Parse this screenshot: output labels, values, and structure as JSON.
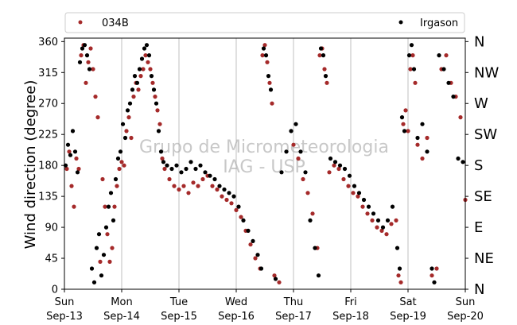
{
  "chart_data": {
    "type": "scatter",
    "title": "",
    "ylabel": "Wind direction (degree)",
    "ylim": [
      0,
      365
    ],
    "yticks": [
      0,
      45,
      90,
      135,
      180,
      225,
      270,
      315,
      360
    ],
    "compass_labels": [
      {
        "value": 0,
        "label": "N"
      },
      {
        "value": 45,
        "label": "NE"
      },
      {
        "value": 90,
        "label": "E"
      },
      {
        "value": 135,
        "label": "SE"
      },
      {
        "value": 180,
        "label": "S"
      },
      {
        "value": 225,
        "label": "SW"
      },
      {
        "value": 270,
        "label": "W"
      },
      {
        "value": 315,
        "label": "NW"
      },
      {
        "value": 360,
        "label": "N"
      }
    ],
    "xlim": [
      "2020-09-13",
      "2020-09-20"
    ],
    "xticks": [
      {
        "date": "2020-09-13",
        "day": "Sun",
        "label": "Sep-13"
      },
      {
        "date": "2020-09-14",
        "day": "Mon",
        "label": "Sep-14"
      },
      {
        "date": "2020-09-15",
        "day": "Tue",
        "label": "Sep-15"
      },
      {
        "date": "2020-09-16",
        "day": "Wed",
        "label": "Sep-16"
      },
      {
        "date": "2020-09-17",
        "day": "Thu",
        "label": "Sep-17"
      },
      {
        "date": "2020-09-18",
        "day": "Fri",
        "label": "Sep-18"
      },
      {
        "date": "2020-09-19",
        "day": "Sat",
        "label": "Sep-19"
      },
      {
        "date": "2020-09-20",
        "day": "Sun",
        "label": "Sep-20"
      }
    ],
    "grid": "vertical",
    "legend_position": "top",
    "watermark_lines": [
      "Grupo de Micrometeorologia",
      "IAG - USP"
    ],
    "series": [
      {
        "name": "034B",
        "color": "#a52a2a",
        "points": [
          [
            "2020-09-13 01:00",
            175
          ],
          [
            "2020-09-13 02:00",
            200
          ],
          [
            "2020-09-13 03:00",
            150
          ],
          [
            "2020-09-13 04:00",
            120
          ],
          [
            "2020-09-13 05:00",
            190
          ],
          [
            "2020-09-13 06:00",
            175
          ],
          [
            "2020-09-13 07:00",
            340
          ],
          [
            "2020-09-13 08:00",
            355
          ],
          [
            "2020-09-13 09:00",
            300
          ],
          [
            "2020-09-13 10:00",
            330
          ],
          [
            "2020-09-13 11:00",
            350
          ],
          [
            "2020-09-13 12:00",
            320
          ],
          [
            "2020-09-13 13:00",
            280
          ],
          [
            "2020-09-13 14:00",
            250
          ],
          [
            "2020-09-13 15:00",
            40
          ],
          [
            "2020-09-13 16:00",
            160
          ],
          [
            "2020-09-13 17:00",
            120
          ],
          [
            "2020-09-13 18:00",
            80
          ],
          [
            "2020-09-13 19:00",
            40
          ],
          [
            "2020-09-13 20:00",
            60
          ],
          [
            "2020-09-13 21:00",
            120
          ],
          [
            "2020-09-13 22:00",
            150
          ],
          [
            "2020-09-13 23:00",
            175
          ],
          [
            "2020-09-14 00:00",
            185
          ],
          [
            "2020-09-14 01:00",
            180
          ],
          [
            "2020-09-14 02:00",
            230
          ],
          [
            "2020-09-14 03:00",
            250
          ],
          [
            "2020-09-14 04:00",
            220
          ],
          [
            "2020-09-14 05:00",
            280
          ],
          [
            "2020-09-14 06:00",
            300
          ],
          [
            "2020-09-14 07:00",
            290
          ],
          [
            "2020-09-14 08:00",
            310
          ],
          [
            "2020-09-14 09:00",
            320
          ],
          [
            "2020-09-14 10:00",
            340
          ],
          [
            "2020-09-14 11:00",
            330
          ],
          [
            "2020-09-14 12:00",
            320
          ],
          [
            "2020-09-14 13:00",
            300
          ],
          [
            "2020-09-14 14:00",
            280
          ],
          [
            "2020-09-14 15:00",
            260
          ],
          [
            "2020-09-14 16:00",
            240
          ],
          [
            "2020-09-14 17:00",
            190
          ],
          [
            "2020-09-14 18:00",
            175
          ],
          [
            "2020-09-14 20:00",
            160
          ],
          [
            "2020-09-14 22:00",
            150
          ],
          [
            "2020-09-15 00:00",
            145
          ],
          [
            "2020-09-15 02:00",
            150
          ],
          [
            "2020-09-15 04:00",
            140
          ],
          [
            "2020-09-15 06:00",
            155
          ],
          [
            "2020-09-15 08:00",
            150
          ],
          [
            "2020-09-15 10:00",
            160
          ],
          [
            "2020-09-15 12:00",
            165
          ],
          [
            "2020-09-15 14:00",
            150
          ],
          [
            "2020-09-15 16:00",
            145
          ],
          [
            "2020-09-15 18:00",
            135
          ],
          [
            "2020-09-15 20:00",
            130
          ],
          [
            "2020-09-15 22:00",
            125
          ],
          [
            "2020-09-16 00:00",
            115
          ],
          [
            "2020-09-16 02:00",
            105
          ],
          [
            "2020-09-16 04:00",
            85
          ],
          [
            "2020-09-16 06:00",
            65
          ],
          [
            "2020-09-16 08:00",
            45
          ],
          [
            "2020-09-16 10:00",
            30
          ],
          [
            "2020-09-16 11:00",
            340
          ],
          [
            "2020-09-16 12:00",
            355
          ],
          [
            "2020-09-16 13:00",
            330
          ],
          [
            "2020-09-16 14:00",
            300
          ],
          [
            "2020-09-16 15:00",
            270
          ],
          [
            "2020-09-16 16:00",
            20
          ],
          [
            "2020-09-16 18:00",
            10
          ],
          [
            "2020-09-17 00:00",
            210
          ],
          [
            "2020-09-17 02:00",
            190
          ],
          [
            "2020-09-17 04:00",
            160
          ],
          [
            "2020-09-17 06:00",
            140
          ],
          [
            "2020-09-17 08:00",
            110
          ],
          [
            "2020-09-17 10:00",
            60
          ],
          [
            "2020-09-17 11:00",
            340
          ],
          [
            "2020-09-17 12:00",
            350
          ],
          [
            "2020-09-17 13:00",
            320
          ],
          [
            "2020-09-17 14:00",
            300
          ],
          [
            "2020-09-17 15:00",
            170
          ],
          [
            "2020-09-17 17:00",
            180
          ],
          [
            "2020-09-17 19:00",
            175
          ],
          [
            "2020-09-17 21:00",
            160
          ],
          [
            "2020-09-17 23:00",
            150
          ],
          [
            "2020-09-18 01:00",
            140
          ],
          [
            "2020-09-18 03:00",
            135
          ],
          [
            "2020-09-18 05:00",
            120
          ],
          [
            "2020-09-18 07:00",
            110
          ],
          [
            "2020-09-18 09:00",
            100
          ],
          [
            "2020-09-18 11:00",
            90
          ],
          [
            "2020-09-18 13:00",
            85
          ],
          [
            "2020-09-18 15:00",
            80
          ],
          [
            "2020-09-18 17:00",
            95
          ],
          [
            "2020-09-18 19:00",
            100
          ],
          [
            "2020-09-18 20:00",
            20
          ],
          [
            "2020-09-18 21:00",
            10
          ],
          [
            "2020-09-18 22:00",
            240
          ],
          [
            "2020-09-18 23:00",
            260
          ],
          [
            "2020-09-19 00:00",
            230
          ],
          [
            "2020-09-19 01:00",
            320
          ],
          [
            "2020-09-19 02:00",
            340
          ],
          [
            "2020-09-19 03:00",
            300
          ],
          [
            "2020-09-19 04:00",
            210
          ],
          [
            "2020-09-19 06:00",
            190
          ],
          [
            "2020-09-19 08:00",
            220
          ],
          [
            "2020-09-19 10:00",
            20
          ],
          [
            "2020-09-19 12:00",
            30
          ],
          [
            "2020-09-19 14:00",
            320
          ],
          [
            "2020-09-19 16:00",
            340
          ],
          [
            "2020-09-19 18:00",
            300
          ],
          [
            "2020-09-19 20:00",
            280
          ],
          [
            "2020-09-19 22:00",
            250
          ],
          [
            "2020-09-20 00:00",
            130
          ]
        ]
      },
      {
        "name": "Irgason",
        "color": "#000000",
        "points": [
          [
            "2020-09-13 00:30",
            180
          ],
          [
            "2020-09-13 01:30",
            210
          ],
          [
            "2020-09-13 02:30",
            195
          ],
          [
            "2020-09-13 03:30",
            230
          ],
          [
            "2020-09-13 04:30",
            200
          ],
          [
            "2020-09-13 05:30",
            170
          ],
          [
            "2020-09-13 06:30",
            330
          ],
          [
            "2020-09-13 07:30",
            350
          ],
          [
            "2020-09-13 08:30",
            355
          ],
          [
            "2020-09-13 09:30",
            340
          ],
          [
            "2020-09-13 10:30",
            320
          ],
          [
            "2020-09-13 11:30",
            30
          ],
          [
            "2020-09-13 12:30",
            10
          ],
          [
            "2020-09-13 13:30",
            60
          ],
          [
            "2020-09-13 14:30",
            80
          ],
          [
            "2020-09-13 15:30",
            20
          ],
          [
            "2020-09-13 16:30",
            50
          ],
          [
            "2020-09-13 17:30",
            90
          ],
          [
            "2020-09-13 18:30",
            120
          ],
          [
            "2020-09-13 19:30",
            140
          ],
          [
            "2020-09-13 20:30",
            100
          ],
          [
            "2020-09-13 21:30",
            160
          ],
          [
            "2020-09-13 22:30",
            190
          ],
          [
            "2020-09-13 23:30",
            200
          ],
          [
            "2020-09-14 00:30",
            240
          ],
          [
            "2020-09-14 01:30",
            220
          ],
          [
            "2020-09-14 02:30",
            260
          ],
          [
            "2020-09-14 03:30",
            270
          ],
          [
            "2020-09-14 04:30",
            290
          ],
          [
            "2020-09-14 05:30",
            310
          ],
          [
            "2020-09-14 06:30",
            300
          ],
          [
            "2020-09-14 07:30",
            320
          ],
          [
            "2020-09-14 08:30",
            335
          ],
          [
            "2020-09-14 09:30",
            350
          ],
          [
            "2020-09-14 10:30",
            355
          ],
          [
            "2020-09-14 11:30",
            340
          ],
          [
            "2020-09-14 12:30",
            310
          ],
          [
            "2020-09-14 13:30",
            290
          ],
          [
            "2020-09-14 14:30",
            270
          ],
          [
            "2020-09-14 15:30",
            230
          ],
          [
            "2020-09-14 16:30",
            200
          ],
          [
            "2020-09-14 17:30",
            185
          ],
          [
            "2020-09-14 19:00",
            180
          ],
          [
            "2020-09-14 21:00",
            175
          ],
          [
            "2020-09-14 23:00",
            180
          ],
          [
            "2020-09-15 01:00",
            170
          ],
          [
            "2020-09-15 03:00",
            175
          ],
          [
            "2020-09-15 05:00",
            185
          ],
          [
            "2020-09-15 07:00",
            175
          ],
          [
            "2020-09-15 09:00",
            180
          ],
          [
            "2020-09-15 11:00",
            170
          ],
          [
            "2020-09-15 13:00",
            165
          ],
          [
            "2020-09-15 15:00",
            160
          ],
          [
            "2020-09-15 17:00",
            150
          ],
          [
            "2020-09-15 19:00",
            145
          ],
          [
            "2020-09-15 21:00",
            140
          ],
          [
            "2020-09-15 23:00",
            135
          ],
          [
            "2020-09-16 01:00",
            120
          ],
          [
            "2020-09-16 03:00",
            100
          ],
          [
            "2020-09-16 05:00",
            85
          ],
          [
            "2020-09-16 07:00",
            70
          ],
          [
            "2020-09-16 09:00",
            50
          ],
          [
            "2020-09-16 10:30",
            30
          ],
          [
            "2020-09-16 11:30",
            350
          ],
          [
            "2020-09-16 12:30",
            340
          ],
          [
            "2020-09-16 13:30",
            310
          ],
          [
            "2020-09-16 14:30",
            290
          ],
          [
            "2020-09-16 16:30",
            15
          ],
          [
            "2020-09-16 19:00",
            170
          ],
          [
            "2020-09-16 21:00",
            200
          ],
          [
            "2020-09-16 23:00",
            230
          ],
          [
            "2020-09-17 01:00",
            240
          ],
          [
            "2020-09-17 03:00",
            200
          ],
          [
            "2020-09-17 05:00",
            170
          ],
          [
            "2020-09-17 07:00",
            100
          ],
          [
            "2020-09-17 09:00",
            60
          ],
          [
            "2020-09-17 10:30",
            20
          ],
          [
            "2020-09-17 11:30",
            350
          ],
          [
            "2020-09-17 12:30",
            340
          ],
          [
            "2020-09-17 13:30",
            310
          ],
          [
            "2020-09-17 15:30",
            190
          ],
          [
            "2020-09-17 17:30",
            185
          ],
          [
            "2020-09-17 19:30",
            180
          ],
          [
            "2020-09-17 21:30",
            175
          ],
          [
            "2020-09-17 23:30",
            165
          ],
          [
            "2020-09-18 01:30",
            150
          ],
          [
            "2020-09-18 03:30",
            140
          ],
          [
            "2020-09-18 05:30",
            130
          ],
          [
            "2020-09-18 07:30",
            120
          ],
          [
            "2020-09-18 09:30",
            110
          ],
          [
            "2020-09-18 11:30",
            100
          ],
          [
            "2020-09-18 13:30",
            90
          ],
          [
            "2020-09-18 15:30",
            100
          ],
          [
            "2020-09-18 17:30",
            120
          ],
          [
            "2020-09-18 19:30",
            60
          ],
          [
            "2020-09-18 20:30",
            30
          ],
          [
            "2020-09-18 21:30",
            250
          ],
          [
            "2020-09-18 22:30",
            230
          ],
          [
            "2020-09-19 00:30",
            340
          ],
          [
            "2020-09-19 01:30",
            355
          ],
          [
            "2020-09-19 02:30",
            320
          ],
          [
            "2020-09-19 04:00",
            220
          ],
          [
            "2020-09-19 06:00",
            240
          ],
          [
            "2020-09-19 08:00",
            200
          ],
          [
            "2020-09-19 10:00",
            30
          ],
          [
            "2020-09-19 11:00",
            10
          ],
          [
            "2020-09-19 13:00",
            340
          ],
          [
            "2020-09-19 15:00",
            320
          ],
          [
            "2020-09-19 17:00",
            300
          ],
          [
            "2020-09-19 19:00",
            280
          ],
          [
            "2020-09-19 21:00",
            190
          ],
          [
            "2020-09-19 23:00",
            185
          ]
        ]
      }
    ]
  }
}
